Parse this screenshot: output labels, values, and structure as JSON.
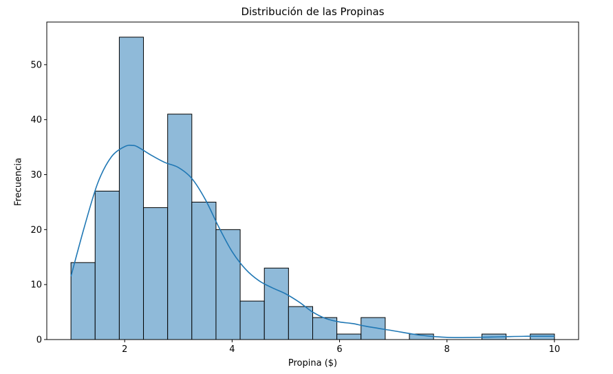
{
  "chart_data": {
    "type": "bar",
    "title": "Distribución de las Propinas",
    "xlabel": "Propina ($)",
    "ylabel": "Frecuencia",
    "xlim": [
      0.55,
      10.45
    ],
    "ylim": [
      0,
      57.75
    ],
    "xticks": [
      2,
      4,
      6,
      8,
      10
    ],
    "yticks": [
      0,
      10,
      20,
      30,
      40,
      50
    ],
    "bin_start": 1.0,
    "bin_width": 0.45,
    "bins": [
      {
        "x0": 1.0,
        "x1": 1.45,
        "count": 14
      },
      {
        "x0": 1.45,
        "x1": 1.9,
        "count": 27
      },
      {
        "x0": 1.9,
        "x1": 2.35,
        "count": 55
      },
      {
        "x0": 2.35,
        "x1": 2.8,
        "count": 24
      },
      {
        "x0": 2.8,
        "x1": 3.25,
        "count": 41
      },
      {
        "x0": 3.25,
        "x1": 3.7,
        "count": 25
      },
      {
        "x0": 3.7,
        "x1": 4.15,
        "count": 20
      },
      {
        "x0": 4.15,
        "x1": 4.6,
        "count": 7
      },
      {
        "x0": 4.6,
        "x1": 5.05,
        "count": 13
      },
      {
        "x0": 5.05,
        "x1": 5.5,
        "count": 6
      },
      {
        "x0": 5.5,
        "x1": 5.95,
        "count": 4
      },
      {
        "x0": 5.95,
        "x1": 6.4,
        "count": 1
      },
      {
        "x0": 6.4,
        "x1": 6.85,
        "count": 4
      },
      {
        "x0": 6.85,
        "x1": 7.3,
        "count": 0
      },
      {
        "x0": 7.3,
        "x1": 7.75,
        "count": 1
      },
      {
        "x0": 7.75,
        "x1": 8.2,
        "count": 0
      },
      {
        "x0": 8.2,
        "x1": 8.65,
        "count": 0
      },
      {
        "x0": 8.65,
        "x1": 9.1,
        "count": 1
      },
      {
        "x0": 9.1,
        "x1": 9.55,
        "count": 0
      },
      {
        "x0": 9.55,
        "x1": 10.0,
        "count": 1
      }
    ],
    "kde": {
      "x": [
        1.0,
        1.25,
        1.5,
        1.75,
        2.0,
        2.15,
        2.25,
        2.5,
        2.75,
        3.0,
        3.25,
        3.5,
        3.75,
        4.0,
        4.25,
        4.5,
        4.75,
        5.0,
        5.25,
        5.5,
        5.75,
        6.0,
        6.25,
        6.5,
        7.0,
        7.5,
        8.0,
        8.5,
        9.0,
        9.5,
        10.0
      ],
      "y": [
        11.5,
        20.5,
        28.5,
        33.2,
        35.1,
        35.3,
        35.0,
        33.5,
        32.2,
        31.3,
        29.3,
        25.5,
        20.5,
        16.0,
        12.8,
        10.7,
        9.4,
        8.3,
        6.8,
        5.0,
        3.8,
        3.2,
        2.9,
        2.4,
        1.6,
        0.8,
        0.4,
        0.4,
        0.5,
        0.6,
        0.6
      ]
    },
    "bar_fill": "#8fbad9",
    "bar_edge": "#000000",
    "kde_color": "#1f77b4",
    "grid": false,
    "legend": "none"
  }
}
